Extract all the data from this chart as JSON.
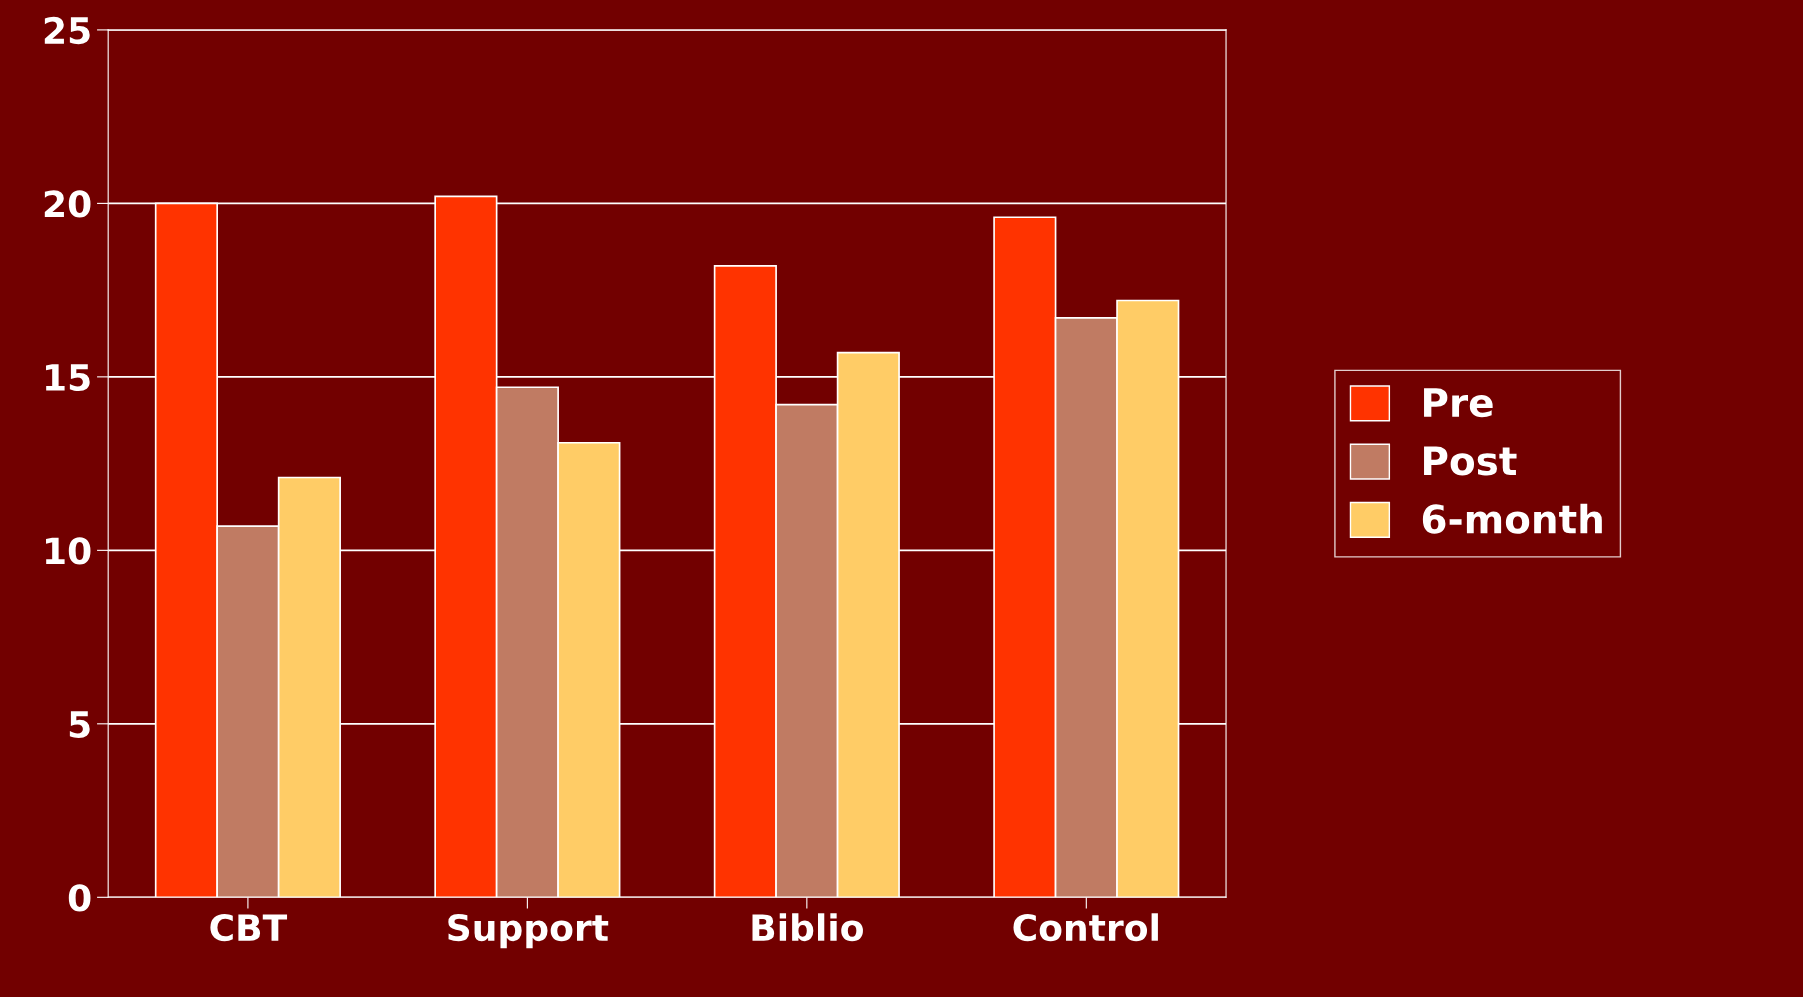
{
  "chart_data": {
    "type": "bar",
    "categories": [
      "CBT",
      "Support",
      "Biblio",
      "Control"
    ],
    "series": [
      {
        "name": "Pre",
        "color": "#ff3300",
        "values": [
          20.0,
          20.2,
          18.2,
          19.6
        ]
      },
      {
        "name": "Post",
        "color": "#c07b63",
        "values": [
          10.7,
          14.7,
          14.2,
          16.7
        ]
      },
      {
        "name": "6-month",
        "color": "#ffcc66",
        "values": [
          12.1,
          13.1,
          15.7,
          17.2
        ]
      }
    ],
    "ylim": [
      0,
      25
    ],
    "yticks": [
      0,
      5,
      10,
      15,
      20,
      25
    ],
    "grid": "y",
    "legend": "right"
  }
}
